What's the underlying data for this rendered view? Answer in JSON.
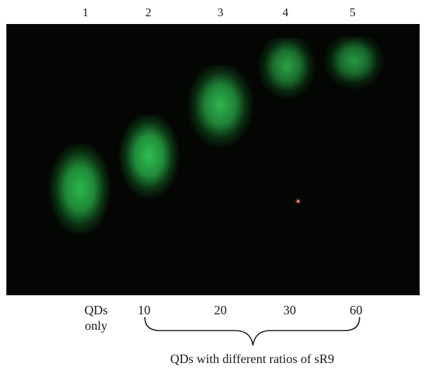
{
  "lane_numbers": [
    "1",
    "2",
    "3",
    "4",
    "5"
  ],
  "lane_labels": {
    "lane1_line1": "QDs",
    "lane1_line2": "only",
    "lane2": "10",
    "lane3": "20",
    "lane4": "30",
    "lane5": "60"
  },
  "group_caption": "QDs with different ratios of sR9",
  "colors": {
    "gel_background": "#040603",
    "band_green": "#2fb84a",
    "speck": "#d98a6a"
  }
}
